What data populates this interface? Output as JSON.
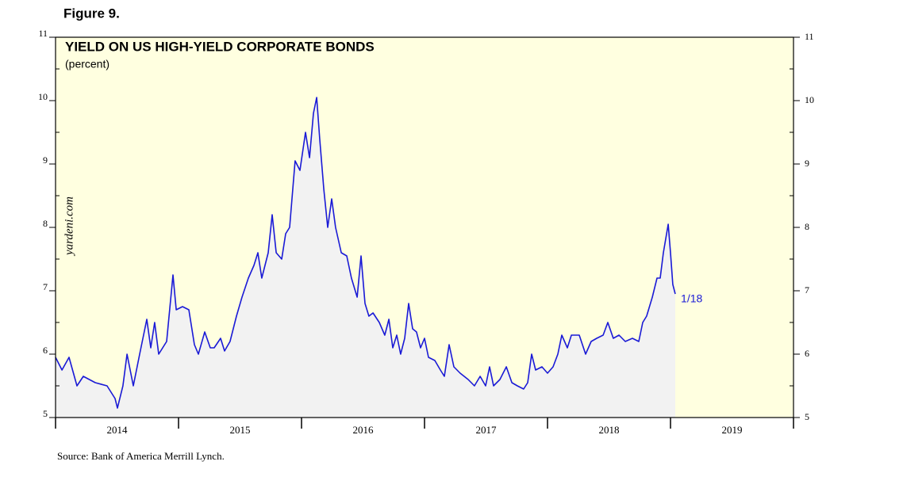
{
  "chart_data": {
    "type": "area-line",
    "figure_label": "Figure 9.",
    "title": "YIELD ON US HIGH-YIELD CORPORATE BONDS",
    "subtitle": "(percent)",
    "watermark": "yardeni.com",
    "source": "Source: Bank of America Merrill Lynch.",
    "annotation": "1/18",
    "series": [
      {
        "name": "Yield",
        "color": "#1a1ad6",
        "fill": "#f2f2f2",
        "x": [
          2014.0,
          2014.052,
          2014.11,
          2014.174,
          2014.226,
          2014.323,
          2014.419,
          2014.484,
          2014.503,
          2014.548,
          2014.581,
          2014.632,
          2014.684,
          2014.742,
          2014.774,
          2014.806,
          2014.839,
          2014.903,
          2014.955,
          2014.981,
          2015.032,
          2015.084,
          2015.129,
          2015.161,
          2015.213,
          2015.258,
          2015.29,
          2015.342,
          2015.374,
          2015.419,
          2015.471,
          2015.516,
          2015.568,
          2015.613,
          2015.645,
          2015.677,
          2015.729,
          2015.761,
          2015.794,
          2015.839,
          2015.871,
          2015.903,
          2015.948,
          2015.987,
          2016.032,
          2016.065,
          2016.097,
          2016.123,
          2016.148,
          2016.181,
          2016.213,
          2016.245,
          2016.277,
          2016.323,
          2016.368,
          2016.406,
          2016.452,
          2016.484,
          2016.516,
          2016.548,
          2016.581,
          2016.632,
          2016.677,
          2016.71,
          2016.742,
          2016.774,
          2016.806,
          2016.839,
          2016.871,
          2016.903,
          2016.935,
          2016.968,
          2017.0,
          2017.032,
          2017.084,
          2017.129,
          2017.161,
          2017.2,
          2017.239,
          2017.29,
          2017.355,
          2017.406,
          2017.452,
          2017.497,
          2017.529,
          2017.561,
          2017.613,
          2017.665,
          2017.71,
          2017.755,
          2017.806,
          2017.839,
          2017.871,
          2017.903,
          2017.955,
          2018.0,
          2018.045,
          2018.084,
          2018.116,
          2018.161,
          2018.194,
          2018.258,
          2018.31,
          2018.355,
          2018.4,
          2018.452,
          2018.49,
          2018.535,
          2018.581,
          2018.632,
          2018.69,
          2018.742,
          2018.774,
          2018.806,
          2018.852,
          2018.89,
          2018.916,
          2018.942,
          2018.981,
          2019.0,
          2019.019,
          2019.039
        ],
        "values": [
          5.95,
          5.75,
          5.95,
          5.5,
          5.65,
          5.55,
          5.5,
          5.3,
          5.15,
          5.5,
          6.0,
          5.5,
          6.0,
          6.55,
          6.1,
          6.5,
          6.0,
          6.2,
          7.25,
          6.7,
          6.75,
          6.7,
          6.15,
          6.0,
          6.35,
          6.1,
          6.1,
          6.25,
          6.05,
          6.2,
          6.6,
          6.9,
          7.2,
          7.4,
          7.6,
          7.2,
          7.6,
          8.2,
          7.6,
          7.5,
          7.9,
          8.0,
          9.05,
          8.9,
          9.5,
          9.1,
          9.8,
          10.05,
          9.4,
          8.6,
          8.0,
          8.45,
          8.0,
          7.6,
          7.55,
          7.2,
          6.9,
          7.55,
          6.8,
          6.6,
          6.65,
          6.5,
          6.3,
          6.55,
          6.1,
          6.3,
          6.0,
          6.25,
          6.8,
          6.4,
          6.35,
          6.1,
          6.25,
          5.95,
          5.9,
          5.75,
          5.65,
          6.15,
          5.8,
          5.7,
          5.6,
          5.5,
          5.65,
          5.5,
          5.8,
          5.5,
          5.6,
          5.8,
          5.55,
          5.5,
          5.45,
          5.55,
          6.0,
          5.75,
          5.8,
          5.7,
          5.8,
          6.0,
          6.3,
          6.1,
          6.3,
          6.3,
          6.0,
          6.2,
          6.25,
          6.3,
          6.5,
          6.25,
          6.3,
          6.2,
          6.25,
          6.2,
          6.5,
          6.6,
          6.9,
          7.2,
          7.2,
          7.6,
          8.05,
          7.6,
          7.1,
          6.95
        ]
      }
    ],
    "xlim": [
      2014,
      2020
    ],
    "xboundaries": [
      2014,
      2015,
      2016,
      2017,
      2018,
      2019,
      2020
    ],
    "xticks": [
      {
        "value": 2014.5,
        "label": "2014"
      },
      {
        "value": 2015.5,
        "label": "2015"
      },
      {
        "value": 2016.5,
        "label": "2016"
      },
      {
        "value": 2017.5,
        "label": "2017"
      },
      {
        "value": 2018.5,
        "label": "2018"
      },
      {
        "value": 2019.5,
        "label": "2019"
      }
    ],
    "ylim": [
      5,
      11
    ],
    "yticks": [
      5,
      6,
      7,
      8,
      9,
      10,
      11
    ],
    "yminor": [
      5.5,
      6.5,
      7.5,
      8.5,
      9.5,
      10.5
    ],
    "background": "#ffffe0"
  }
}
